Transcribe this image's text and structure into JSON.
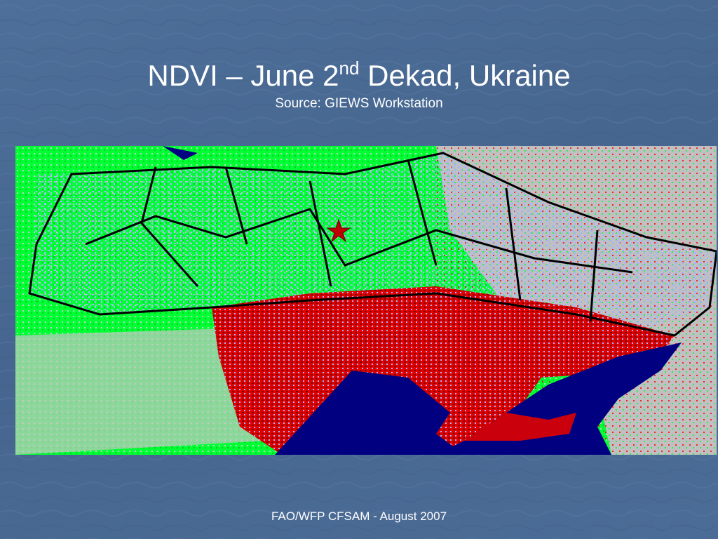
{
  "header": {
    "title": {
      "before": "NDVI – June 2",
      "superscript": "nd",
      "after": " Dekad, Ukraine"
    },
    "subtitle": "Source: GIEWS Workstation"
  },
  "footer": "FAO/WFP CFSAM - August 2007"
}
